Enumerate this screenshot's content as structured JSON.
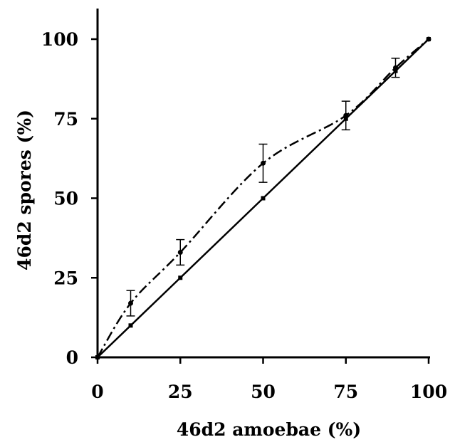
{
  "chart_data": {
    "type": "line",
    "xlabel": "46d2 amoebae (%)",
    "ylabel": "46d2 spores (%)",
    "xlim": [
      0,
      100
    ],
    "ylim": [
      0,
      100
    ],
    "xticks": [
      "0",
      "25",
      "50",
      "75",
      "100"
    ],
    "yticks": [
      "0",
      "25",
      "50",
      "75",
      "100"
    ],
    "grid": false,
    "legend": "none",
    "series": [
      {
        "style": "solid",
        "x": [
          0,
          10,
          25,
          50,
          75,
          90,
          100
        ],
        "y": [
          0,
          10,
          25,
          50,
          75,
          90,
          100
        ]
      },
      {
        "style": "dash-dot",
        "x": [
          0,
          10,
          25,
          50,
          75,
          90,
          100
        ],
        "y": [
          0,
          17,
          33,
          61,
          76,
          91,
          100
        ],
        "error": [
          0,
          4,
          4,
          6,
          4.5,
          3,
          0
        ]
      }
    ]
  }
}
